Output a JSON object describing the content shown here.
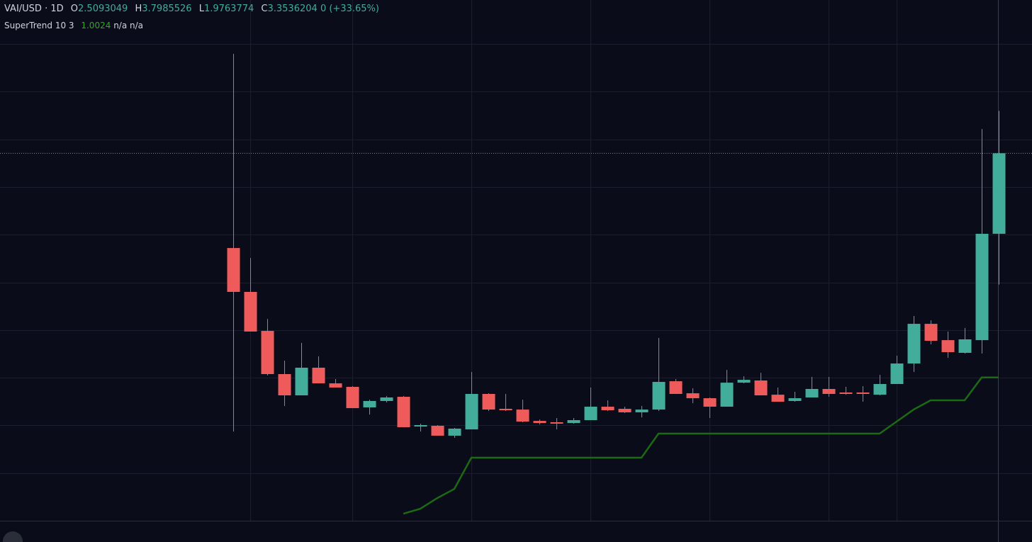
{
  "chart_data": {
    "type": "candlestick",
    "symbol": "VAI/USD",
    "interval": "· 1D",
    "ohlc_labels": [
      "O",
      "H",
      "L",
      "C"
    ],
    "change": "0 (+33.65%)",
    "up_color": "#42ad9b",
    "down_color": "#ef5b5b",
    "categories": [
      null,
      null,
      null,
      null,
      null,
      null,
      null,
      null,
      null,
      null,
      null,
      null,
      null,
      null,
      null,
      null,
      null,
      null,
      null,
      null,
      null,
      null,
      null,
      null,
      null,
      null,
      null,
      null,
      null,
      null,
      null,
      null,
      null,
      null,
      null,
      null,
      null,
      null,
      null,
      null,
      null,
      null,
      null,
      null,
      null,
      null
    ],
    "open": [
      2.36,
      1.9,
      1.491,
      1.038,
      0.815,
      1.105,
      0.941,
      0.904,
      0.689,
      0.756,
      0.8,
      0.488,
      0.496,
      0.392,
      0.458,
      0.83,
      0.674,
      0.666,
      0.547,
      0.533,
      0.525,
      0.555,
      0.696,
      0.674,
      0.637,
      0.666,
      0.963,
      0.837,
      0.785,
      0.696,
      0.948,
      0.971,
      0.822,
      0.756,
      0.793,
      0.882,
      0.845,
      0.845,
      0.822,
      0.934,
      1.149,
      1.565,
      1.394,
      1.261,
      1.394,
      2.5093049
    ],
    "high": [
      4.396,
      2.256,
      1.617,
      1.179,
      1.365,
      1.224,
      0.986,
      0.912,
      0.77,
      0.808,
      0.808,
      0.518,
      0.503,
      0.473,
      1.06,
      0.837,
      0.83,
      0.77,
      0.562,
      0.577,
      0.577,
      0.897,
      0.763,
      0.696,
      0.704,
      1.417,
      0.986,
      0.889,
      0.793,
      1.082,
      1.015,
      1.052,
      0.897,
      0.852,
      1.008,
      1.008,
      0.904,
      0.912,
      1.03,
      1.231,
      1.647,
      1.602,
      1.484,
      1.521,
      3.608,
      3.7985526
    ],
    "low": [
      0.436,
      1.484,
      1.023,
      0.704,
      0.815,
      0.941,
      0.897,
      0.681,
      0.614,
      0.741,
      0.481,
      0.436,
      0.392,
      0.369,
      0.458,
      0.651,
      0.651,
      0.533,
      0.51,
      0.458,
      0.518,
      0.555,
      0.651,
      0.629,
      0.584,
      0.651,
      0.83,
      0.733,
      0.577,
      0.696,
      0.941,
      0.815,
      0.748,
      0.748,
      0.793,
      0.8,
      0.822,
      0.748,
      0.815,
      0.934,
      1.06,
      1.35,
      1.209,
      1.253,
      1.253,
      1.9763774
    ],
    "close": [
      1.9,
      1.484,
      1.038,
      0.815,
      1.105,
      0.941,
      0.897,
      0.681,
      0.756,
      0.793,
      0.481,
      0.503,
      0.392,
      0.466,
      0.83,
      0.666,
      0.659,
      0.54,
      0.525,
      0.518,
      0.555,
      0.696,
      0.659,
      0.637,
      0.666,
      0.956,
      0.83,
      0.785,
      0.696,
      0.948,
      0.978,
      0.815,
      0.748,
      0.785,
      0.882,
      0.83,
      0.83,
      0.83,
      0.934,
      1.149,
      1.565,
      1.387,
      1.268,
      1.402,
      2.509,
      3.3536204
    ],
    "series": [
      {
        "name": "SuperTrend 10 3",
        "color": "#1c6a12",
        "value_note": "n/a n/a",
        "values": [
          null,
          null,
          null,
          null,
          null,
          null,
          null,
          null,
          null,
          null,
          -0.426,
          -0.374,
          -0.262,
          -0.166,
          0.161,
          0.161,
          0.161,
          0.161,
          0.161,
          0.161,
          0.161,
          0.161,
          0.161,
          0.161,
          0.161,
          0.414,
          0.414,
          0.414,
          0.414,
          0.414,
          0.414,
          0.414,
          0.414,
          0.414,
          0.414,
          0.414,
          0.414,
          0.414,
          0.414,
          0.54,
          0.666,
          0.763,
          0.763,
          0.763,
          1.0024,
          1.0024
        ]
      }
    ],
    "ylim": [
      -0.5,
      4.961
    ],
    "yticks": [
      -0.5,
      0,
      0.5,
      1,
      1.5,
      2,
      2.5,
      3,
      3.5,
      4,
      4.5
    ],
    "grid": true
  }
}
